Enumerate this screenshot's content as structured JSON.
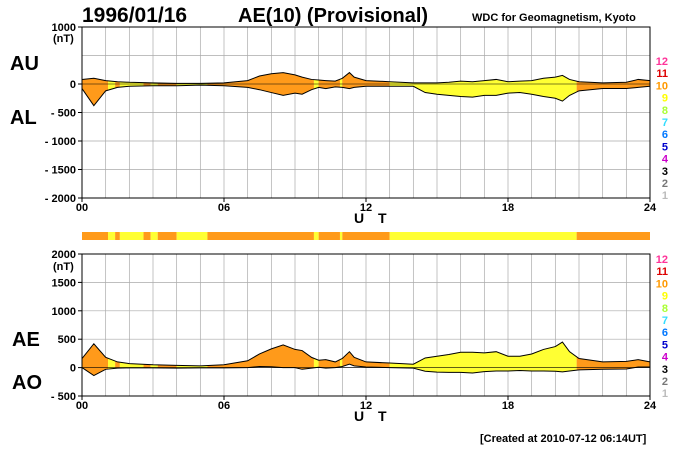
{
  "header": {
    "date": "1996/01/16",
    "title": "AE(10) (Provisional)",
    "source": "WDC for Geomagnetism, Kyoto"
  },
  "footer": "[Created at 2010-07-12 06:14UT]",
  "x_axis_label": "U T",
  "colors": {
    "yellow": "#ffff33",
    "orange": "#ff9a1a",
    "grid": "#aaaaaa",
    "levels": [
      "#ff3399",
      "#ff1a1a",
      "#ff9900",
      "#ffff00",
      "#aaff33",
      "#33ffcc",
      "#00aaff",
      "#3333ff",
      "#000099",
      "#cc33cc",
      "#000000",
      "#777777",
      "#bbbbbb"
    ]
  },
  "station_levels": [
    "12",
    "11",
    "10",
    "9",
    "8",
    "7",
    "6",
    "5",
    "4",
    "3",
    "2",
    "1"
  ],
  "station_level_colors": [
    "#ff3399",
    "#dd0000",
    "#ff9900",
    "#ffff00",
    "#aaff33",
    "#33ddff",
    "#0077ff",
    "#0000cc",
    "#cc00cc",
    "#000000",
    "#777777",
    "#bbbbbb"
  ],
  "chart_data": [
    {
      "type": "area",
      "id": "au_al",
      "series_labels": [
        "AU",
        "AL"
      ],
      "ylabel": "(nT)",
      "ylim": [
        -2000,
        1000
      ],
      "y_ticks": [
        1000,
        0,
        -500,
        -1000,
        -1500,
        -2000
      ],
      "y_tick_labels": [
        "1000",
        "0",
        "- 500",
        "- 1000",
        "- 1500",
        "- 2000"
      ],
      "x_ticks": [
        0,
        6,
        12,
        18,
        24
      ],
      "x_tick_labels": [
        "00",
        "06",
        "12",
        "18",
        "24"
      ],
      "xlim": [
        0,
        24
      ],
      "grid": true,
      "x_hours": [
        0,
        0.5,
        1,
        1.5,
        2,
        3,
        4,
        5,
        6,
        7,
        7.5,
        8,
        8.5,
        9,
        9.3,
        9.7,
        10,
        10.3,
        10.7,
        11,
        11.3,
        11.5,
        12,
        13,
        14,
        14.5,
        15,
        15.5,
        16,
        16.5,
        17,
        17.5,
        18,
        18.5,
        19,
        19.5,
        20,
        20.3,
        20.6,
        21,
        22,
        23,
        23.5,
        24
      ],
      "AU": [
        80,
        100,
        60,
        40,
        30,
        20,
        10,
        10,
        20,
        60,
        140,
        180,
        200,
        160,
        120,
        80,
        70,
        60,
        50,
        100,
        200,
        120,
        60,
        40,
        20,
        20,
        20,
        30,
        50,
        40,
        60,
        80,
        40,
        50,
        60,
        100,
        120,
        150,
        80,
        40,
        20,
        30,
        80,
        60
      ],
      "AL": [
        -80,
        -380,
        -120,
        -60,
        -40,
        -30,
        -30,
        -20,
        -30,
        -60,
        -100,
        -150,
        -200,
        -160,
        -180,
        -100,
        -60,
        -80,
        -50,
        -60,
        -80,
        -60,
        -40,
        -40,
        -40,
        -150,
        -180,
        -200,
        -220,
        -230,
        -200,
        -200,
        -160,
        -150,
        -180,
        -220,
        -250,
        -300,
        -200,
        -120,
        -80,
        -80,
        -60,
        -40
      ]
    },
    {
      "type": "area",
      "id": "ae_ao",
      "series_labels": [
        "AE",
        "AO"
      ],
      "ylabel": "(nT)",
      "ylim": [
        -500,
        2000
      ],
      "y_ticks": [
        2000,
        1500,
        1000,
        500,
        0,
        -500
      ],
      "y_tick_labels": [
        "2000",
        "1500",
        "1000",
        "500",
        "0",
        "- 500"
      ],
      "x_ticks": [
        0,
        6,
        12,
        18,
        24
      ],
      "x_tick_labels": [
        "00",
        "06",
        "12",
        "18",
        "24"
      ],
      "xlim": [
        0,
        24
      ],
      "grid": true,
      "x_hours": [
        0,
        0.5,
        1,
        1.5,
        2,
        3,
        4,
        5,
        6,
        7,
        7.5,
        8,
        8.5,
        9,
        9.3,
        9.7,
        10,
        10.3,
        10.7,
        11,
        11.3,
        11.5,
        12,
        13,
        14,
        14.5,
        15,
        15.5,
        16,
        16.5,
        17,
        17.5,
        18,
        18.5,
        19,
        19.5,
        20,
        20.3,
        20.6,
        21,
        22,
        23,
        23.5,
        24
      ],
      "AE": [
        160,
        420,
        180,
        100,
        70,
        50,
        40,
        30,
        50,
        120,
        240,
        330,
        400,
        320,
        300,
        180,
        130,
        140,
        100,
        160,
        280,
        180,
        100,
        80,
        60,
        170,
        200,
        230,
        270,
        270,
        260,
        280,
        200,
        200,
        240,
        320,
        370,
        450,
        280,
        160,
        100,
        110,
        140,
        100
      ],
      "AO": [
        0,
        -140,
        -30,
        -10,
        -5,
        -5,
        -10,
        -5,
        -5,
        0,
        20,
        15,
        0,
        0,
        -30,
        -10,
        5,
        -10,
        0,
        20,
        60,
        30,
        10,
        0,
        -10,
        -65,
        -80,
        -85,
        -85,
        -95,
        -70,
        -60,
        -60,
        -50,
        -60,
        -60,
        -65,
        -75,
        -60,
        -40,
        -30,
        -25,
        10,
        10
      ]
    }
  ],
  "station_count_bar": {
    "segments": [
      {
        "from": 0,
        "to": 1.1,
        "level": 10
      },
      {
        "from": 1.1,
        "to": 1.4,
        "level": 9
      },
      {
        "from": 1.4,
        "to": 1.6,
        "level": 10
      },
      {
        "from": 1.6,
        "to": 2.6,
        "level": 9
      },
      {
        "from": 2.6,
        "to": 2.9,
        "level": 10
      },
      {
        "from": 2.9,
        "to": 3.2,
        "level": 9
      },
      {
        "from": 3.2,
        "to": 4.0,
        "level": 10
      },
      {
        "from": 4.0,
        "to": 5.3,
        "level": 9
      },
      {
        "from": 5.3,
        "to": 9.8,
        "level": 10
      },
      {
        "from": 9.8,
        "to": 10.0,
        "level": 9
      },
      {
        "from": 10.0,
        "to": 10.9,
        "level": 10
      },
      {
        "from": 10.9,
        "to": 11.0,
        "level": 9
      },
      {
        "from": 11.0,
        "to": 13.0,
        "level": 10
      },
      {
        "from": 13.0,
        "to": 20.9,
        "level": 9
      },
      {
        "from": 20.9,
        "to": 24.0,
        "level": 10
      }
    ]
  }
}
